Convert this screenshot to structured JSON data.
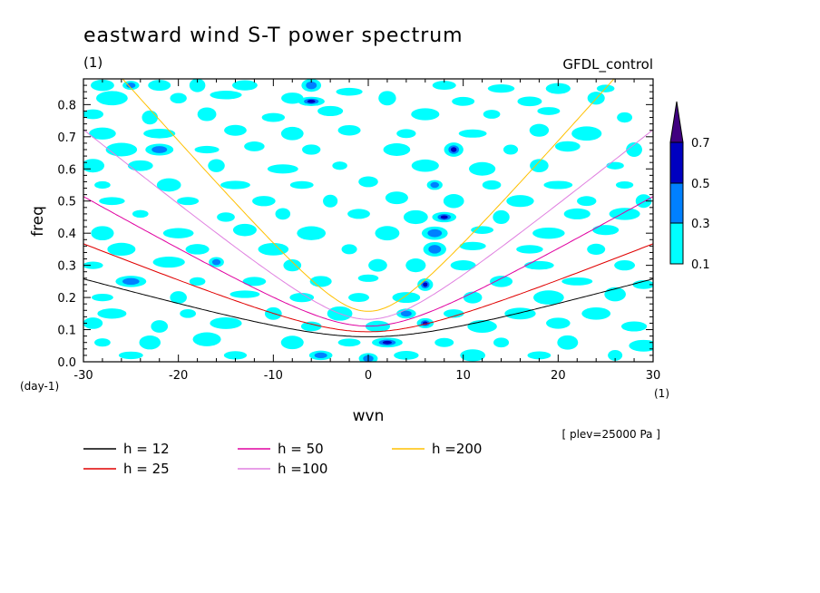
{
  "chart_data": {
    "type": "heatmap",
    "title": "eastward wind S-T power spectrum",
    "units_label": "(1)",
    "run_label": "GFDL_control",
    "xlabel": "wvn",
    "ylabel": "freq",
    "x_units": "(1)",
    "y_units": "(day-1)",
    "level_note": "[ plev=25000 Pa ]",
    "xlim": [
      -30,
      30
    ],
    "ylim": [
      0,
      0.88
    ],
    "x_ticks": [
      "-30",
      "-20",
      "-10",
      "0",
      "10",
      "20",
      "30"
    ],
    "y_ticks": [
      "0.0",
      "0.1",
      "0.2",
      "0.3",
      "0.4",
      "0.5",
      "0.6",
      "0.7",
      "0.8"
    ],
    "colorbar": {
      "levels": [
        "0.1",
        "0.3",
        "0.5",
        "0.7"
      ],
      "colors": [
        "#00ffff",
        "#0080ff",
        "#0000c0",
        "#400080"
      ]
    },
    "series": [
      {
        "name": "h = 12",
        "color": "#000000",
        "h": 12
      },
      {
        "name": "h = 25",
        "color": "#e00000",
        "h": 25
      },
      {
        "name": "h = 50",
        "color": "#e000a0",
        "h": 50
      },
      {
        "name": "h =100",
        "color": "#e080e0",
        "h": 100
      },
      {
        "name": "h =200",
        "color": "#ffc000",
        "h": 200
      }
    ],
    "blobs": [
      [
        -28,
        0.86,
        1
      ],
      [
        -25,
        0.86,
        2
      ],
      [
        -22,
        0.86,
        1
      ],
      [
        -18,
        0.86,
        1
      ],
      [
        -13,
        0.86,
        1
      ],
      [
        -6,
        0.86,
        2
      ],
      [
        -2,
        0.84,
        1
      ],
      [
        8,
        0.86,
        1
      ],
      [
        14,
        0.85,
        1
      ],
      [
        20,
        0.85,
        1
      ],
      [
        25,
        0.85,
        1
      ],
      [
        -27,
        0.82,
        1
      ],
      [
        -20,
        0.82,
        1
      ],
      [
        -15,
        0.83,
        1
      ],
      [
        -8,
        0.82,
        1
      ],
      [
        -6,
        0.81,
        3
      ],
      [
        2,
        0.82,
        1
      ],
      [
        10,
        0.81,
        1
      ],
      [
        17,
        0.81,
        1
      ],
      [
        24,
        0.82,
        1
      ],
      [
        -29,
        0.77,
        1
      ],
      [
        -23,
        0.76,
        1
      ],
      [
        -17,
        0.77,
        1
      ],
      [
        -10,
        0.76,
        1
      ],
      [
        -4,
        0.78,
        1
      ],
      [
        6,
        0.77,
        1
      ],
      [
        13,
        0.77,
        1
      ],
      [
        19,
        0.78,
        1
      ],
      [
        27,
        0.76,
        1
      ],
      [
        -28,
        0.71,
        1
      ],
      [
        -22,
        0.71,
        1
      ],
      [
        -14,
        0.72,
        1
      ],
      [
        -8,
        0.71,
        1
      ],
      [
        -2,
        0.72,
        1
      ],
      [
        4,
        0.71,
        1
      ],
      [
        11,
        0.71,
        1
      ],
      [
        18,
        0.72,
        1
      ],
      [
        23,
        0.71,
        1
      ],
      [
        -26,
        0.66,
        1
      ],
      [
        -22,
        0.66,
        2
      ],
      [
        -17,
        0.66,
        1
      ],
      [
        -12,
        0.67,
        1
      ],
      [
        -6,
        0.66,
        1
      ],
      [
        3,
        0.66,
        1
      ],
      [
        9,
        0.66,
        3
      ],
      [
        15,
        0.66,
        1
      ],
      [
        21,
        0.67,
        1
      ],
      [
        28,
        0.66,
        1
      ],
      [
        -29,
        0.61,
        1
      ],
      [
        -24,
        0.61,
        1
      ],
      [
        -16,
        0.61,
        1
      ],
      [
        -9,
        0.6,
        1
      ],
      [
        -3,
        0.61,
        1
      ],
      [
        6,
        0.61,
        1
      ],
      [
        12,
        0.6,
        1
      ],
      [
        18,
        0.61,
        1
      ],
      [
        26,
        0.61,
        1
      ],
      [
        -28,
        0.55,
        1
      ],
      [
        -21,
        0.55,
        1
      ],
      [
        -14,
        0.55,
        1
      ],
      [
        -7,
        0.55,
        1
      ],
      [
        0,
        0.56,
        1
      ],
      [
        7,
        0.55,
        2
      ],
      [
        13,
        0.55,
        1
      ],
      [
        20,
        0.55,
        1
      ],
      [
        27,
        0.55,
        1
      ],
      [
        -27,
        0.5,
        1
      ],
      [
        -19,
        0.5,
        1
      ],
      [
        -11,
        0.5,
        1
      ],
      [
        -4,
        0.5,
        1
      ],
      [
        3,
        0.51,
        1
      ],
      [
        9,
        0.5,
        1
      ],
      [
        16,
        0.5,
        1
      ],
      [
        23,
        0.5,
        1
      ],
      [
        29,
        0.5,
        1
      ],
      [
        -24,
        0.46,
        1
      ],
      [
        -15,
        0.45,
        1
      ],
      [
        -9,
        0.46,
        1
      ],
      [
        -1,
        0.46,
        1
      ],
      [
        5,
        0.45,
        1
      ],
      [
        8,
        0.45,
        3
      ],
      [
        14,
        0.45,
        1
      ],
      [
        22,
        0.46,
        1
      ],
      [
        27,
        0.46,
        1
      ],
      [
        -28,
        0.4,
        1
      ],
      [
        -20,
        0.4,
        1
      ],
      [
        -13,
        0.41,
        1
      ],
      [
        -6,
        0.4,
        1
      ],
      [
        2,
        0.4,
        1
      ],
      [
        7,
        0.4,
        2
      ],
      [
        12,
        0.41,
        1
      ],
      [
        19,
        0.4,
        1
      ],
      [
        25,
        0.41,
        1
      ],
      [
        -26,
        0.35,
        1
      ],
      [
        -18,
        0.35,
        1
      ],
      [
        -10,
        0.35,
        1
      ],
      [
        -2,
        0.35,
        1
      ],
      [
        7,
        0.35,
        2
      ],
      [
        11,
        0.36,
        1
      ],
      [
        17,
        0.35,
        1
      ],
      [
        24,
        0.35,
        1
      ],
      [
        -29,
        0.3,
        1
      ],
      [
        -21,
        0.31,
        1
      ],
      [
        -16,
        0.31,
        2
      ],
      [
        -8,
        0.3,
        1
      ],
      [
        1,
        0.3,
        1
      ],
      [
        5,
        0.3,
        1
      ],
      [
        10,
        0.3,
        1
      ],
      [
        18,
        0.3,
        1
      ],
      [
        27,
        0.3,
        1
      ],
      [
        -25,
        0.25,
        2
      ],
      [
        -18,
        0.25,
        1
      ],
      [
        -12,
        0.25,
        1
      ],
      [
        -5,
        0.25,
        1
      ],
      [
        0,
        0.26,
        1
      ],
      [
        6,
        0.24,
        3
      ],
      [
        14,
        0.25,
        1
      ],
      [
        22,
        0.25,
        1
      ],
      [
        29,
        0.24,
        1
      ],
      [
        -28,
        0.2,
        1
      ],
      [
        -20,
        0.2,
        1
      ],
      [
        -13,
        0.21,
        1
      ],
      [
        -7,
        0.2,
        1
      ],
      [
        -1,
        0.2,
        1
      ],
      [
        4,
        0.2,
        1
      ],
      [
        11,
        0.2,
        1
      ],
      [
        19,
        0.2,
        1
      ],
      [
        26,
        0.21,
        1
      ],
      [
        -27,
        0.15,
        1
      ],
      [
        -19,
        0.15,
        1
      ],
      [
        -10,
        0.15,
        1
      ],
      [
        -3,
        0.15,
        1
      ],
      [
        4,
        0.15,
        2
      ],
      [
        9,
        0.15,
        1
      ],
      [
        16,
        0.15,
        1
      ],
      [
        24,
        0.15,
        1
      ],
      [
        -29,
        0.12,
        1
      ],
      [
        -22,
        0.11,
        1
      ],
      [
        -15,
        0.12,
        1
      ],
      [
        -6,
        0.11,
        1
      ],
      [
        1,
        0.11,
        1
      ],
      [
        6,
        0.12,
        3
      ],
      [
        12,
        0.11,
        1
      ],
      [
        20,
        0.12,
        1
      ],
      [
        28,
        0.11,
        1
      ],
      [
        -28,
        0.06,
        1
      ],
      [
        -23,
        0.06,
        1
      ],
      [
        -17,
        0.07,
        1
      ],
      [
        -8,
        0.06,
        1
      ],
      [
        -2,
        0.06,
        1
      ],
      [
        2,
        0.06,
        3
      ],
      [
        8,
        0.06,
        1
      ],
      [
        14,
        0.06,
        1
      ],
      [
        21,
        0.06,
        1
      ],
      [
        29,
        0.05,
        1
      ],
      [
        -25,
        0.02,
        1
      ],
      [
        -14,
        0.02,
        1
      ],
      [
        -5,
        0.02,
        2
      ],
      [
        0,
        0.01,
        2
      ],
      [
        4,
        0.02,
        1
      ],
      [
        11,
        0.02,
        1
      ],
      [
        18,
        0.02,
        1
      ],
      [
        26,
        0.02,
        1
      ]
    ]
  }
}
